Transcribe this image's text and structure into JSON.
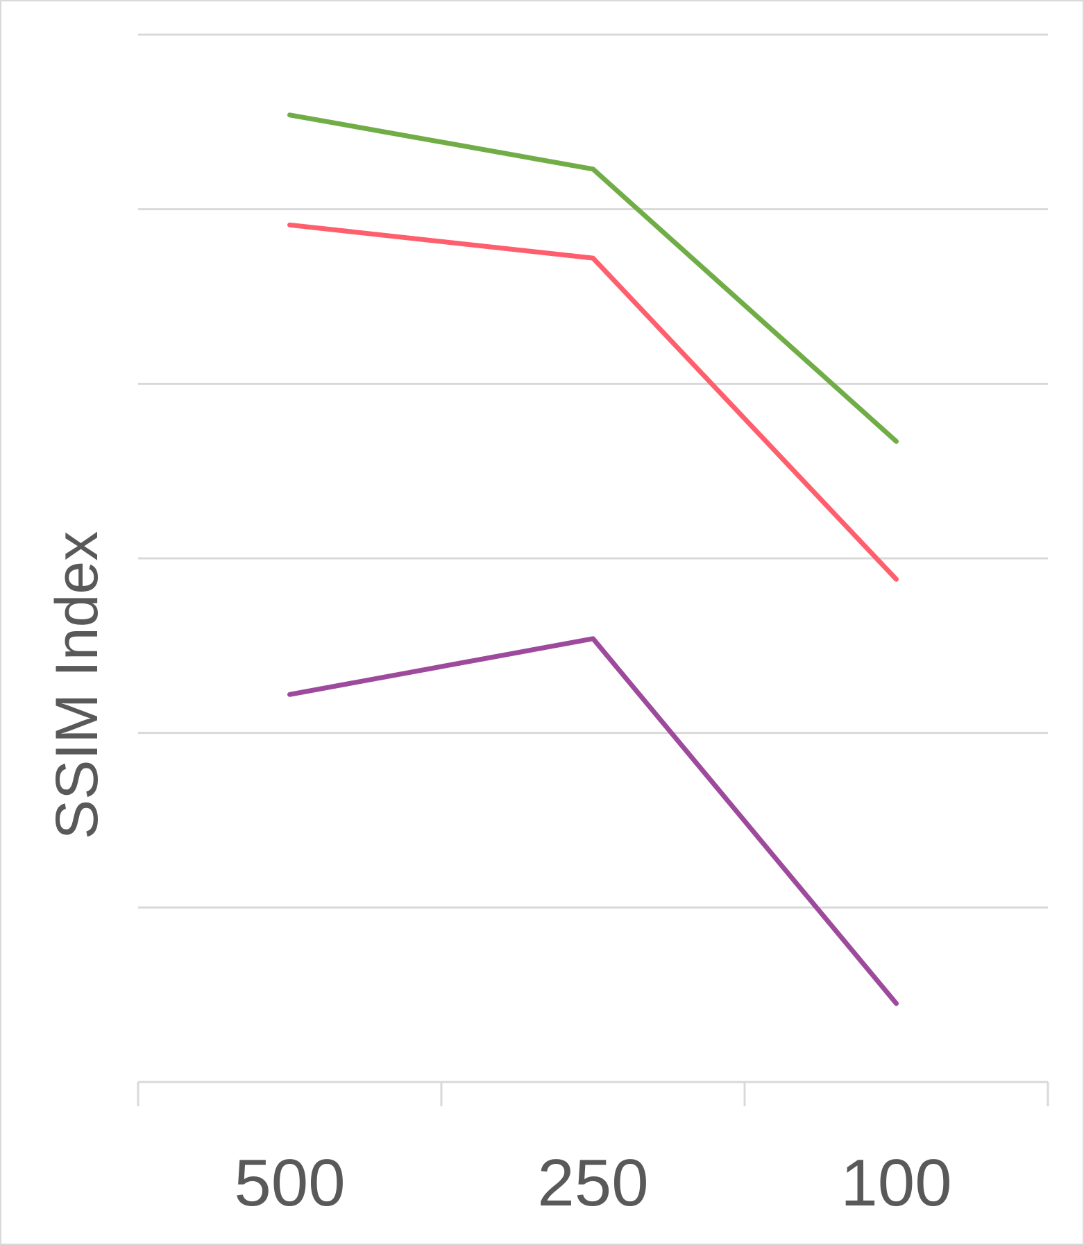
{
  "chart_data": {
    "type": "line",
    "title": "",
    "xlabel": "",
    "ylabel": "SSIM Index",
    "categories": [
      "500",
      "250",
      "100"
    ],
    "ylim": [
      0,
      6
    ],
    "y_gridlines": [
      1,
      2,
      3,
      4,
      5,
      6
    ],
    "grid": true,
    "legend": "none",
    "series": [
      {
        "color": "#70AD47",
        "values": [
          5.54,
          5.23,
          3.67
        ]
      },
      {
        "color": "#FF5F6D",
        "values": [
          4.91,
          4.72,
          2.88
        ]
      },
      {
        "color": "#9E4A9C",
        "values": [
          2.22,
          2.54,
          0.45
        ]
      }
    ]
  }
}
